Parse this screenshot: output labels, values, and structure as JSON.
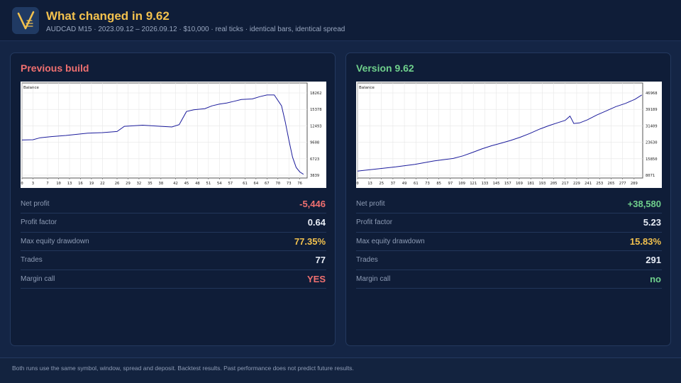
{
  "header": {
    "logo_icon": "v-logo-icon",
    "title": "What changed in 9.62",
    "subtitle": "AUDCAD M15  ·  2023.09.12 – 2026.09.12  ·  $10,000  ·  real ticks  ·  identical bars, identical spread"
  },
  "colors": {
    "accent": "#f2c14e",
    "negative": "#f07070",
    "positive": "#6fd08c",
    "warning": "#f2c14e",
    "neutral": "#e8edf6",
    "chart_line": "#1c1c9c"
  },
  "panels": [
    {
      "title": "Previous build",
      "title_color": "#f07070",
      "chart_data": {
        "type": "line",
        "title": "Balance",
        "x_ticks": [
          "0",
          "3",
          "7",
          "10",
          "13",
          "16",
          "19",
          "22",
          "26",
          "29",
          "32",
          "35",
          "38",
          "42",
          "45",
          "48",
          "51",
          "54",
          "57",
          "61",
          "64",
          "67",
          "70",
          "73",
          "76"
        ],
        "y_ticks": [
          "18262",
          "15378",
          "12493",
          "9608",
          "6723",
          "3839"
        ],
        "xlim": [
          0,
          78
        ],
        "ylim": [
          3839,
          18262
        ],
        "points": [
          [
            0,
            10000
          ],
          [
            3,
            10050
          ],
          [
            5,
            10400
          ],
          [
            8,
            10600
          ],
          [
            12,
            10800
          ],
          [
            15,
            11000
          ],
          [
            18,
            11200
          ],
          [
            22,
            11300
          ],
          [
            26,
            11500
          ],
          [
            28,
            12400
          ],
          [
            33,
            12600
          ],
          [
            38,
            12400
          ],
          [
            41,
            12300
          ],
          [
            43,
            12700
          ],
          [
            45,
            15000
          ],
          [
            47,
            15300
          ],
          [
            50,
            15500
          ],
          [
            52,
            16000
          ],
          [
            54,
            16300
          ],
          [
            56,
            16500
          ],
          [
            58,
            16800
          ],
          [
            60,
            17100
          ],
          [
            63,
            17200
          ],
          [
            65,
            17600
          ],
          [
            67,
            17900
          ],
          [
            69,
            17900
          ],
          [
            71,
            16000
          ],
          [
            72,
            13200
          ],
          [
            73,
            10000
          ],
          [
            74,
            7000
          ],
          [
            75,
            5200
          ],
          [
            76,
            4400
          ],
          [
            77,
            4000
          ]
        ]
      },
      "stats": [
        {
          "label": "Net profit",
          "value": "-5,446",
          "color": "#f07070"
        },
        {
          "label": "Profit factor",
          "value": "0.64",
          "color": "#e8edf6"
        },
        {
          "label": "Max equity drawdown",
          "value": "77.35%",
          "color": "#f2c14e"
        },
        {
          "label": "Trades",
          "value": "77",
          "color": "#e8edf6"
        },
        {
          "label": "Margin call",
          "value": "YES",
          "color": "#f07070"
        }
      ]
    },
    {
      "title": "Version 9.62",
      "title_color": "#6fd08c",
      "chart_data": {
        "type": "line",
        "title": "Balance",
        "x_ticks": [
          "0",
          "13",
          "25",
          "37",
          "49",
          "61",
          "73",
          "85",
          "97",
          "109",
          "121",
          "133",
          "145",
          "157",
          "169",
          "181",
          "193",
          "205",
          "217",
          "229",
          "241",
          "253",
          "265",
          "277",
          "289"
        ],
        "y_ticks": [
          "46968",
          "39189",
          "31409",
          "23630",
          "15850",
          "8071"
        ],
        "xlim": [
          0,
          298
        ],
        "ylim": [
          8071,
          46968
        ],
        "points": [
          [
            0,
            10000
          ],
          [
            20,
            11000
          ],
          [
            40,
            12000
          ],
          [
            60,
            13200
          ],
          [
            80,
            14800
          ],
          [
            100,
            16000
          ],
          [
            110,
            17200
          ],
          [
            120,
            18800
          ],
          [
            130,
            20500
          ],
          [
            140,
            22000
          ],
          [
            150,
            23200
          ],
          [
            160,
            24500
          ],
          [
            170,
            26000
          ],
          [
            180,
            27800
          ],
          [
            190,
            29800
          ],
          [
            200,
            31500
          ],
          [
            210,
            33000
          ],
          [
            217,
            34000
          ],
          [
            222,
            36000
          ],
          [
            226,
            32500
          ],
          [
            232,
            32800
          ],
          [
            240,
            34200
          ],
          [
            250,
            36500
          ],
          [
            260,
            38500
          ],
          [
            270,
            40500
          ],
          [
            280,
            42000
          ],
          [
            290,
            44000
          ],
          [
            297,
            46000
          ]
        ]
      },
      "stats": [
        {
          "label": "Net profit",
          "value": "+38,580",
          "color": "#6fd08c"
        },
        {
          "label": "Profit factor",
          "value": "5.23",
          "color": "#e8edf6"
        },
        {
          "label": "Max equity drawdown",
          "value": "15.83%",
          "color": "#f2c14e"
        },
        {
          "label": "Trades",
          "value": "291",
          "color": "#e8edf6"
        },
        {
          "label": "Margin call",
          "value": "no",
          "color": "#6fd08c"
        }
      ]
    }
  ],
  "footer": {
    "text": "Both runs use the same symbol, window, spread and deposit. Backtest results. Past performance does not predict future results."
  }
}
